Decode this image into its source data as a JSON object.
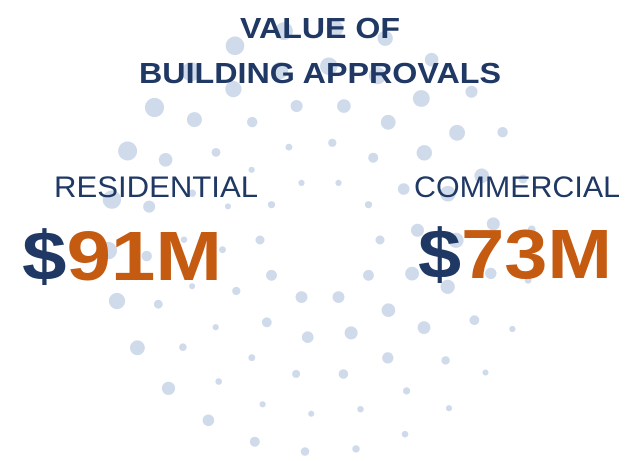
{
  "title": {
    "line1": "VALUE OF",
    "line2": "BUILDING APPROVALS"
  },
  "stats": [
    {
      "label": "RESIDENTIAL",
      "currency": "$",
      "amount": "91M"
    },
    {
      "label": "COMMERCIAL",
      "currency": "$",
      "amount": "73M"
    }
  ]
}
